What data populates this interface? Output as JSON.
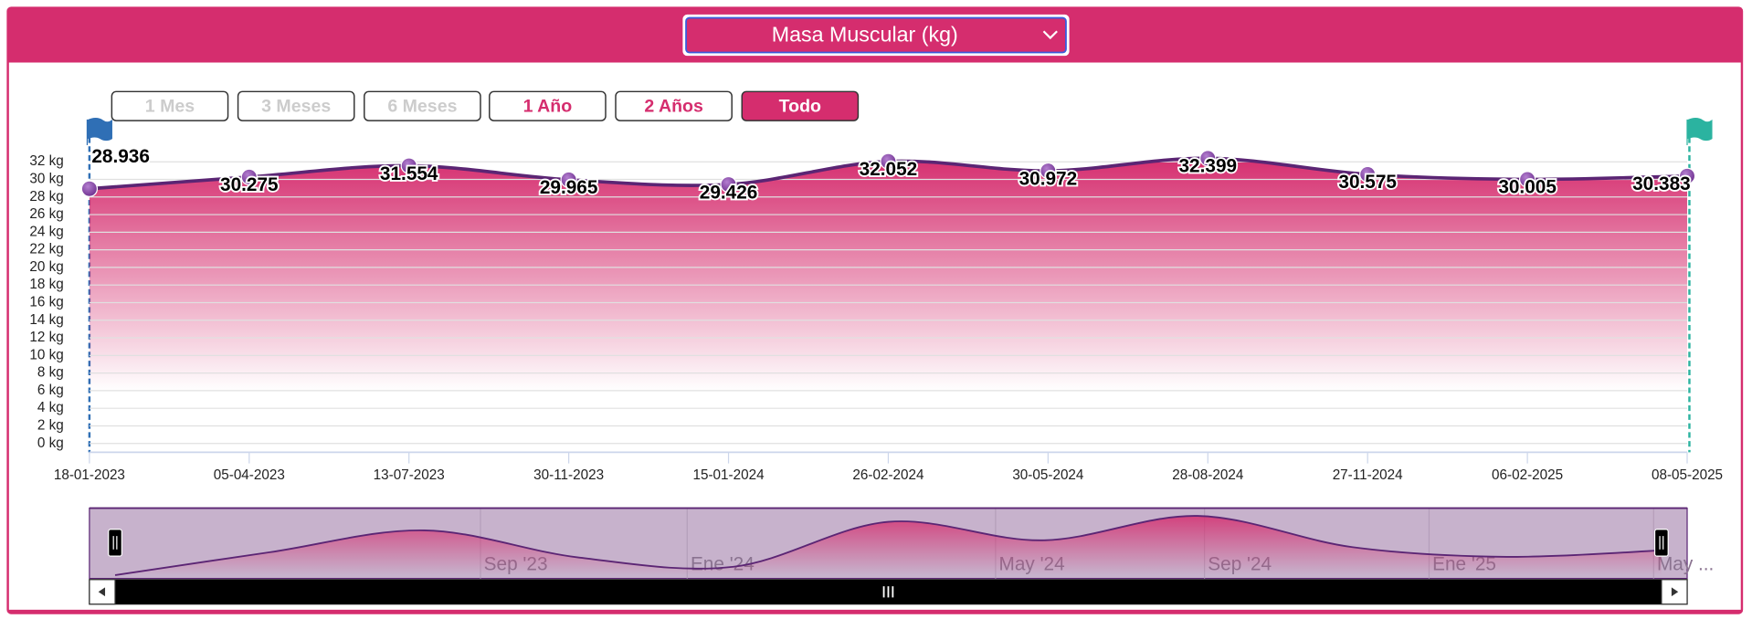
{
  "dropdown": {
    "label": "Masa Muscular (kg)"
  },
  "range_buttons": [
    {
      "label": "1 Mes",
      "state": "disabled"
    },
    {
      "label": "3 Meses",
      "state": "disabled"
    },
    {
      "label": "6 Meses",
      "state": "disabled"
    },
    {
      "label": "1 Año",
      "state": "enabled"
    },
    {
      "label": "2 Años",
      "state": "enabled"
    },
    {
      "label": "Todo",
      "state": "selected"
    }
  ],
  "chart_data": {
    "type": "area",
    "categories": [
      "18-01-2023",
      "05-04-2023",
      "13-07-2023",
      "30-11-2023",
      "15-01-2024",
      "26-02-2024",
      "30-05-2024",
      "28-08-2024",
      "27-11-2024",
      "06-02-2025",
      "08-05-2025"
    ],
    "values": [
      28.936,
      30.275,
      31.554,
      29.965,
      29.426,
      32.052,
      30.972,
      32.399,
      30.575,
      30.005,
      30.383
    ],
    "ylim": [
      -1,
      33
    ],
    "yticks": [
      {
        "value": 0,
        "label": "0 kg"
      },
      {
        "value": 2,
        "label": "2 kg"
      },
      {
        "value": 4,
        "label": "4 kg"
      },
      {
        "value": 6,
        "label": "6 kg"
      },
      {
        "value": 8,
        "label": "8 kg"
      },
      {
        "value": 10,
        "label": "10 kg"
      },
      {
        "value": 12,
        "label": "12 kg"
      },
      {
        "value": 14,
        "label": "14 kg"
      },
      {
        "value": 16,
        "label": "16 kg"
      },
      {
        "value": 18,
        "label": "18 kg"
      },
      {
        "value": 20,
        "label": "20 kg"
      },
      {
        "value": 22,
        "label": "22 kg"
      },
      {
        "value": 24,
        "label": "24 kg"
      },
      {
        "value": 26,
        "label": "26 kg"
      },
      {
        "value": 28,
        "label": "28 kg"
      },
      {
        "value": 30,
        "label": "30 kg"
      },
      {
        "value": 32,
        "label": "32 kg"
      }
    ],
    "grid": true,
    "color": "#d52d6e",
    "line_color": "#5b2574",
    "marker_color": "#7a3a98"
  },
  "navigator": {
    "labels": [
      "Sep '23",
      "Ene '24",
      "May '24",
      "Sep '24",
      "Ene '25",
      "May ..."
    ]
  }
}
